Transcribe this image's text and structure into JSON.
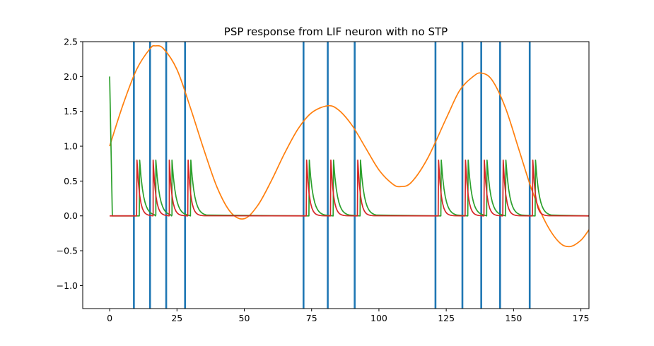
{
  "chart_data": {
    "type": "line",
    "title": "PSP response from LIF neuron with no STP",
    "xlabel": "",
    "ylabel": "",
    "xlim": [
      -10,
      178
    ],
    "ylim": [
      -1.33,
      2.5
    ],
    "grid": false,
    "xticks": [
      0,
      25,
      50,
      75,
      100,
      125,
      150,
      175
    ],
    "xtick_labels": [
      "0",
      "25",
      "50",
      "75",
      "100",
      "125",
      "150",
      "175"
    ],
    "yticks": [
      -1.0,
      -0.5,
      0.0,
      0.5,
      1.0,
      1.5,
      2.0,
      2.5
    ],
    "ytick_labels": [
      "−1.0",
      "−0.5",
      "0.0",
      "0.5",
      "1.0",
      "1.5",
      "2.0",
      "2.5"
    ],
    "spike_times": [
      9,
      15,
      21,
      28,
      72,
      81,
      91,
      121,
      131,
      138,
      145,
      156
    ],
    "series": [
      {
        "color": "#1f77b4",
        "kind": "spike-lines",
        "x": [
          9,
          15,
          21,
          28,
          72,
          81,
          91,
          121,
          131,
          138,
          145,
          156
        ]
      },
      {
        "color": "#ff7f0e",
        "kind": "line",
        "x": [
          0,
          5,
          10,
          15,
          17,
          20,
          25,
          30,
          35,
          40,
          45,
          50,
          55,
          60,
          65,
          70,
          75,
          81,
          85,
          90,
          95,
          100,
          105,
          108,
          112,
          118,
          125,
          130,
          135,
          138,
          142,
          147,
          152,
          157,
          162,
          167,
          171,
          175,
          178
        ],
        "y": [
          1.0,
          1.6,
          2.1,
          2.4,
          2.44,
          2.4,
          2.1,
          1.55,
          0.95,
          0.4,
          0.05,
          -0.04,
          0.15,
          0.5,
          0.9,
          1.25,
          1.48,
          1.58,
          1.52,
          1.3,
          0.98,
          0.66,
          0.46,
          0.42,
          0.48,
          0.82,
          1.4,
          1.8,
          2.0,
          2.05,
          1.95,
          1.55,
          0.95,
          0.35,
          -0.1,
          -0.38,
          -0.44,
          -0.35,
          -0.2
        ]
      },
      {
        "color": "#2ca02c",
        "kind": "psp",
        "initial": [
          0,
          2.0,
          1,
          0.0
        ],
        "spike_offset": 2,
        "peak": 0.8,
        "tau": 1.4,
        "baseline": 0.0
      },
      {
        "color": "#d62728",
        "kind": "psp",
        "spike_offset": 1,
        "peak": 0.8,
        "tau": 1.0,
        "baseline": 0.0
      }
    ]
  }
}
